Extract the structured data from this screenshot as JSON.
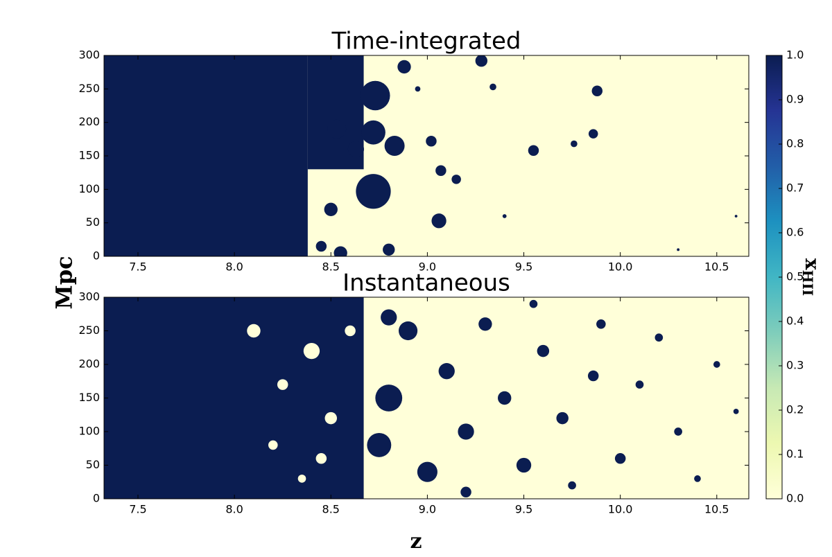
{
  "chart_data": {
    "type": "heatmap",
    "xlabel": "z",
    "ylabel": "Mpc",
    "colorbar": {
      "label": "x",
      "label_sub": "HII",
      "lim": [
        0,
        1
      ],
      "ticks": [
        {
          "value": 0,
          "label": "0.0"
        },
        0.1,
        0.2,
        0.3,
        0.4,
        0.5,
        0.6,
        0.7,
        0.8,
        0.9,
        {
          "value": 1,
          "label": "1.0"
        }
      ],
      "colormap": [
        "#ffffd9",
        "#edf8b1",
        "#c7e9b4",
        "#7fcdbb",
        "#41b6c4",
        "#1d91c0",
        "#225ea8",
        "#253494",
        "#0b1d51"
      ]
    },
    "panels": [
      {
        "title": "Time-integrated",
        "xlim": [
          7.324,
          10.666
        ],
        "ylim": [
          0,
          300
        ],
        "xticks": [
          7.5,
          {
            "value": 8,
            "label": "8.0"
          },
          8.5,
          {
            "value": 9,
            "label": "9.0"
          },
          9.5,
          {
            "value": 10,
            "label": "10.0"
          },
          10.5
        ],
        "yticks": [
          0,
          50,
          100,
          150,
          200,
          250,
          300
        ],
        "background_value": 0,
        "regions": [
          {
            "x0": 7.324,
            "x1": 8.38,
            "y0": 0,
            "y1": 300,
            "value": 1
          },
          {
            "x0": 8.38,
            "x1": 8.67,
            "y0": 130,
            "y1": 300,
            "value": 1
          }
        ],
        "bubbles": {
          "x": [
            8.73,
            8.72,
            8.72,
            8.83,
            8.53,
            8.5,
            8.45,
            8.55,
            8.8,
            9.06,
            9.07,
            9.02,
            9.15,
            9.28,
            9.55,
            9.88,
            9.86,
            9.76,
            8.88,
            8.63,
            9.34,
            8.95,
            9.4,
            10.6,
            10.3
          ],
          "y": [
            240,
            97,
            185,
            165,
            190,
            70,
            15,
            5,
            10,
            53,
            128,
            172,
            115,
            292,
            158,
            247,
            183,
            168,
            283,
            160,
            253,
            250,
            60,
            60,
            10
          ],
          "r": [
            22,
            26,
            18,
            15,
            14,
            10,
            8,
            10,
            9,
            11,
            8,
            8,
            7,
            9,
            8,
            8,
            7,
            5,
            10,
            12,
            5,
            4,
            3,
            2,
            2
          ],
          "value": [
            1,
            1,
            1,
            1,
            1,
            1,
            1,
            1,
            1,
            1,
            1,
            1,
            1,
            1,
            1,
            1,
            1,
            1,
            1,
            1,
            1,
            1,
            1,
            1,
            1
          ]
        }
      },
      {
        "title": "Instantaneous",
        "xlim": [
          7.324,
          10.666
        ],
        "ylim": [
          0,
          300
        ],
        "xticks": [
          7.5,
          {
            "value": 8,
            "label": "8.0"
          },
          8.5,
          {
            "value": 9,
            "label": "9.0"
          },
          9.5,
          {
            "value": 10,
            "label": "10.0"
          },
          10.5
        ],
        "yticks": [
          0,
          50,
          100,
          150,
          200,
          250,
          300
        ],
        "background_value": 0,
        "regions": [
          {
            "x0": 7.324,
            "x1": 8.67,
            "y0": 0,
            "y1": 300,
            "value": 1
          }
        ],
        "bubbles": {
          "x": [
            8.1,
            8.25,
            8.4,
            8.5,
            8.2,
            8.6,
            8.35,
            8.45,
            8.8,
            8.75,
            8.9,
            9.0,
            9.1,
            9.2,
            9.3,
            9.4,
            9.5,
            9.6,
            9.7,
            9.86,
            9.9,
            10.0,
            10.1,
            10.2,
            10.3,
            10.4,
            10.5,
            10.6,
            9.75,
            9.2,
            8.8,
            9.55
          ],
          "y": [
            250,
            170,
            220,
            120,
            80,
            250,
            30,
            60,
            150,
            80,
            250,
            40,
            190,
            100,
            260,
            150,
            50,
            220,
            120,
            183,
            260,
            60,
            170,
            240,
            100,
            30,
            200,
            130,
            20,
            10,
            270,
            290
          ],
          "r": [
            10,
            8,
            12,
            9,
            7,
            8,
            6,
            8,
            20,
            18,
            14,
            15,
            12,
            12,
            10,
            10,
            11,
            9,
            9,
            8,
            7,
            8,
            6,
            6,
            6,
            5,
            5,
            4,
            6,
            8,
            12,
            6
          ],
          "value": [
            0,
            0,
            0,
            0,
            0,
            0,
            0,
            0,
            1,
            1,
            1,
            1,
            1,
            1,
            1,
            1,
            1,
            1,
            1,
            1,
            1,
            1,
            1,
            1,
            1,
            1,
            1,
            1,
            1,
            1,
            1,
            1
          ]
        }
      }
    ]
  }
}
